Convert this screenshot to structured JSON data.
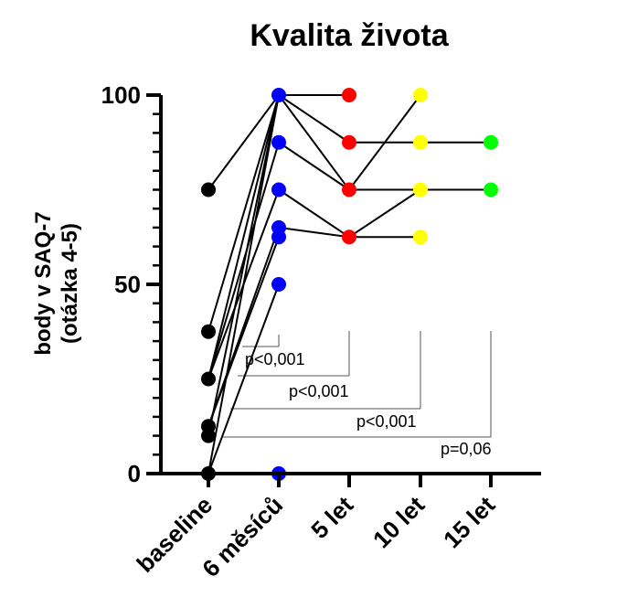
{
  "chart_data": {
    "type": "line",
    "title": "Kvalita života",
    "ylabel_lines": [
      "body v SAQ-7",
      "(otázka 4-5)"
    ],
    "xlabel": "",
    "categories": [
      "baseline",
      "6 měsíců",
      "5 let",
      "10 let",
      "15 let"
    ],
    "ylim": [
      0,
      100
    ],
    "yticks": [
      0,
      50,
      100
    ],
    "grid": false,
    "legend": "none",
    "point_colors": [
      "#000000",
      "#0000ff",
      "#ff0000",
      "#ffff00",
      "#00ff00"
    ],
    "line_color": "#000000",
    "series": [
      {
        "values": [
          75,
          100,
          null,
          null,
          null
        ]
      },
      {
        "values": [
          37.5,
          100,
          null,
          null,
          null
        ]
      },
      {
        "values": [
          25,
          100,
          75,
          100,
          null
        ]
      },
      {
        "values": [
          25,
          87.5,
          75,
          75,
          75
        ]
      },
      {
        "values": [
          25,
          75,
          62.5,
          62.5,
          null
        ]
      },
      {
        "values": [
          12.5,
          65,
          62.5,
          75,
          null
        ]
      },
      {
        "values": [
          12.5,
          62.5,
          null,
          null,
          null
        ]
      },
      {
        "values": [
          10,
          100,
          87.5,
          87.5,
          87.5
        ]
      },
      {
        "values": [
          0,
          50,
          null,
          null,
          null
        ]
      },
      {
        "values": [
          0,
          100,
          100,
          null,
          null
        ]
      },
      {
        "values": [
          null,
          0,
          null,
          null,
          null
        ]
      }
    ],
    "annotations": [
      {
        "label": "p<0,001",
        "from": "baseline",
        "to": "6 měsíců"
      },
      {
        "label": "p<0,001",
        "from": "baseline",
        "to": "5 let"
      },
      {
        "label": "p<0,001",
        "from": "baseline",
        "to": "10 let"
      },
      {
        "label": "p=0,06",
        "from": "baseline",
        "to": "15 let"
      }
    ]
  }
}
